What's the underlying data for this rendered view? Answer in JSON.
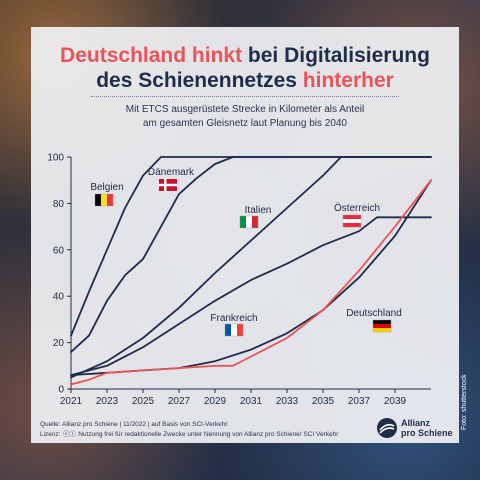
{
  "title": {
    "line1_highlight": "Deutschland hinkt",
    "line1_rest": " bei Digitalisierung",
    "line2_rest": "des Schienennetzes ",
    "line2_highlight": "hinterher"
  },
  "subtitle": {
    "line1": "Mit ETCS ausgerüstete Strecke in Kilometer als Anteil",
    "line2": "am gesamten Gleisnetz laut Planung bis 2040"
  },
  "footer": {
    "source": "Quelle: Allianz pro Schiene | 11/2022 | auf Basis von SCI-Verkehr",
    "license_label": "Lizenz:",
    "license_text": "Nutzung frei für redaktionelle Zwecke unter Nennung von Allianz pro Schiene/ SCI Verkehr"
  },
  "logo": {
    "line1": "Allianz",
    "line2": "pro Schiene"
  },
  "photo_credit": "Foto: shutterstock",
  "colors": {
    "navy": "#1f2d4b",
    "red": "#e8545a"
  },
  "chart_data": {
    "type": "line",
    "x_ticks": [
      "2021",
      "2023",
      "2025",
      "2027",
      "2029",
      "2031",
      "2033",
      "2035",
      "2037",
      "2039"
    ],
    "y_ticks": [
      "0",
      "20",
      "40",
      "60",
      "80",
      "100"
    ],
    "xlim": [
      2021,
      2041
    ],
    "ylim": [
      0,
      100
    ],
    "series": [
      {
        "name": "Belgien",
        "color": "#1f2d4b",
        "flag": [
          "#000000",
          "#fdda24",
          "#ef3340"
        ],
        "flag_dir": "v",
        "x": [
          2021,
          2022,
          2023,
          2024,
          2025,
          2026,
          2041
        ],
        "y": [
          23,
          42,
          60,
          78,
          92,
          100,
          100
        ]
      },
      {
        "name": "Dänemark",
        "color": "#1f2d4b",
        "flag": "dk",
        "x": [
          2021,
          2022,
          2023,
          2024,
          2025,
          2026,
          2027,
          2028,
          2029,
          2030,
          2041
        ],
        "y": [
          16,
          23,
          38,
          49,
          56,
          70,
          84,
          91,
          97,
          100,
          100
        ]
      },
      {
        "name": "Italien",
        "color": "#1f2d4b",
        "flag": [
          "#009246",
          "#ffffff",
          "#ce2b37"
        ],
        "flag_dir": "v",
        "x": [
          2021,
          2023,
          2025,
          2027,
          2029,
          2031,
          2033,
          2035,
          2036,
          2041
        ],
        "y": [
          5,
          12,
          22,
          35,
          50,
          64,
          78,
          92,
          100,
          100
        ]
      },
      {
        "name": "Österreich",
        "color": "#1f2d4b",
        "flag": [
          "#ed2939",
          "#ffffff",
          "#ed2939"
        ],
        "flag_dir": "h",
        "x": [
          2021,
          2023,
          2025,
          2027,
          2029,
          2031,
          2033,
          2035,
          2037,
          2038,
          2041
        ],
        "y": [
          6,
          10,
          18,
          28,
          38,
          47,
          54,
          62,
          68,
          74,
          74
        ]
      },
      {
        "name": "Frankreich",
        "color": "#1f2d4b",
        "flag": [
          "#0055a4",
          "#ffffff",
          "#ef4135"
        ],
        "flag_dir": "v",
        "x": [
          2021,
          2023,
          2025,
          2027,
          2029,
          2031,
          2033,
          2035,
          2037,
          2039,
          2041
        ],
        "y": [
          6,
          7,
          8,
          9,
          12,
          17,
          24,
          34,
          48,
          66,
          90
        ]
      },
      {
        "name": "Deutschland",
        "color": "#e8545a",
        "flag": [
          "#000000",
          "#dd0000",
          "#ffce00"
        ],
        "flag_dir": "h",
        "x": [
          2021,
          2022,
          2023,
          2025,
          2027,
          2029,
          2030,
          2031,
          2033,
          2035,
          2037,
          2039,
          2041
        ],
        "y": [
          2,
          4,
          7,
          8,
          9,
          10,
          10,
          14,
          22,
          34,
          51,
          70,
          90
        ]
      }
    ]
  }
}
